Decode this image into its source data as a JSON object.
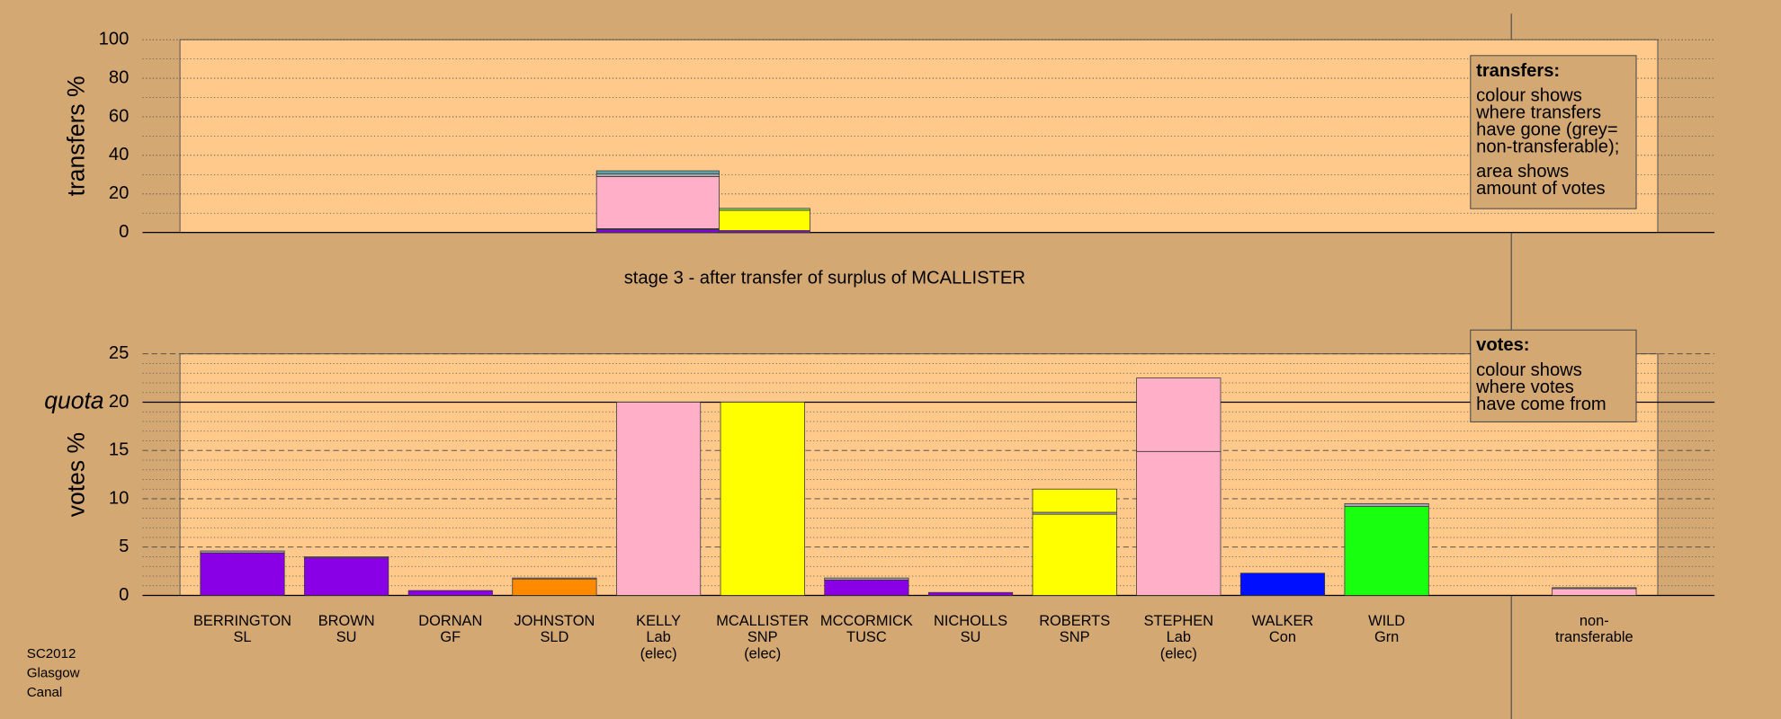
{
  "chart_data": [
    {
      "type": "stacked-bar",
      "ylabel": "transfers %",
      "ylim": [
        0,
        100
      ],
      "yticks": [
        0,
        20,
        40,
        60,
        80,
        100
      ],
      "minor_yticks": [
        10,
        30,
        50,
        70,
        90
      ],
      "grid": true,
      "title": "stage 3 - after transfer of surplus of MCALLISTER",
      "blocks": [
        {
          "segments": [
            {
              "color": "#8a00e6",
              "value": 1.5
            },
            {
              "color": "#666666",
              "value": 0.5
            },
            {
              "color": "#ffb0c8",
              "value": 27
            },
            {
              "color": "#a8a8a8",
              "value": 1.5
            },
            {
              "color": "#5aaab4",
              "value": 1.5
            }
          ]
        },
        {
          "segments": [
            {
              "color": "#8a00e6",
              "value": 1
            },
            {
              "color": "#ffff00",
              "value": 10.5
            },
            {
              "color": "#88e060",
              "value": 1
            }
          ]
        }
      ],
      "legend": {
        "title": "transfers:",
        "lines": [
          "colour shows",
          "where transfers",
          "have gone (grey=",
          "non-transferable);",
          "area shows",
          "amount of votes"
        ]
      }
    },
    {
      "type": "stacked-bar",
      "ylabel": "votes %",
      "ylim": [
        0,
        25
      ],
      "yticks": [
        0,
        5,
        10,
        15,
        20,
        25
      ],
      "minor_yticks": [
        1,
        2,
        3,
        4,
        6,
        7,
        8,
        9,
        11,
        12,
        13,
        14,
        16,
        17,
        18,
        19,
        21,
        22,
        23,
        24
      ],
      "grid": true,
      "quota": {
        "value": 20,
        "label": "quota"
      },
      "categories": [
        [
          "BERRINGTON",
          "SL"
        ],
        [
          "BROWN",
          "SU"
        ],
        [
          "DORNAN",
          "GF"
        ],
        [
          "JOHNSTON",
          "SLD"
        ],
        [
          "KELLY",
          "Lab",
          "(elec)"
        ],
        [
          "MCALLISTER",
          "SNP",
          "(elec)"
        ],
        [
          "MCCORMICK",
          "TUSC"
        ],
        [
          "NICHOLLS",
          "SU"
        ],
        [
          "ROBERTS",
          "SNP"
        ],
        [
          "STEPHEN",
          "Lab",
          "(elec)"
        ],
        [
          "WALKER",
          "Con"
        ],
        [
          "WILD",
          "Grn"
        ],
        [
          "non-",
          "transferable"
        ]
      ],
      "bars": [
        {
          "segments": [
            {
              "color": "#8a00e6",
              "value": 4.4
            },
            {
              "color": "#a8a8a8",
              "value": 0.2
            }
          ]
        },
        {
          "segments": [
            {
              "color": "#8a00e6",
              "value": 3.9
            },
            {
              "color": "#a8a8a8",
              "value": 0.1
            }
          ]
        },
        {
          "segments": [
            {
              "color": "#8a00e6",
              "value": 0.5
            }
          ]
        },
        {
          "segments": [
            {
              "color": "#ff8a00",
              "value": 1.7
            },
            {
              "color": "#a8a8a8",
              "value": 0.1
            }
          ]
        },
        {
          "segments": [
            {
              "color": "#ffb0c8",
              "value": 20
            }
          ]
        },
        {
          "segments": [
            {
              "color": "#ffff00",
              "value": 20
            }
          ]
        },
        {
          "segments": [
            {
              "color": "#8a00e6",
              "value": 1.6
            },
            {
              "color": "#a8a8a8",
              "value": 0.2
            }
          ]
        },
        {
          "segments": [
            {
              "color": "#8a00e6",
              "value": 0.3
            }
          ]
        },
        {
          "segments": [
            {
              "color": "#ffff00",
              "value": 8.4
            },
            {
              "color": "#a8a8a8",
              "value": 0.2
            },
            {
              "color": "#ffff00",
              "value": 2.4
            }
          ]
        },
        {
          "segments": [
            {
              "color": "#ffb0c8",
              "value": 14.9
            },
            {
              "color": "#ffb0c8",
              "value": 7.6
            }
          ]
        },
        {
          "segments": [
            {
              "color": "#0010ff",
              "value": 2.3
            }
          ]
        },
        {
          "segments": [
            {
              "color": "#18ff10",
              "value": 9.2
            },
            {
              "color": "#a8a8a8",
              "value": 0.3
            }
          ]
        },
        {
          "segments": [
            {
              "color": "#ffb0c8",
              "value": 0.7
            },
            {
              "color": "#a8a8a8",
              "value": 0.1
            }
          ]
        }
      ],
      "legend": {
        "title": "votes:",
        "lines": [
          "colour shows",
          "where votes",
          "have come from"
        ]
      }
    }
  ],
  "footer": [
    "SC2012",
    "Glasgow",
    "Canal"
  ]
}
